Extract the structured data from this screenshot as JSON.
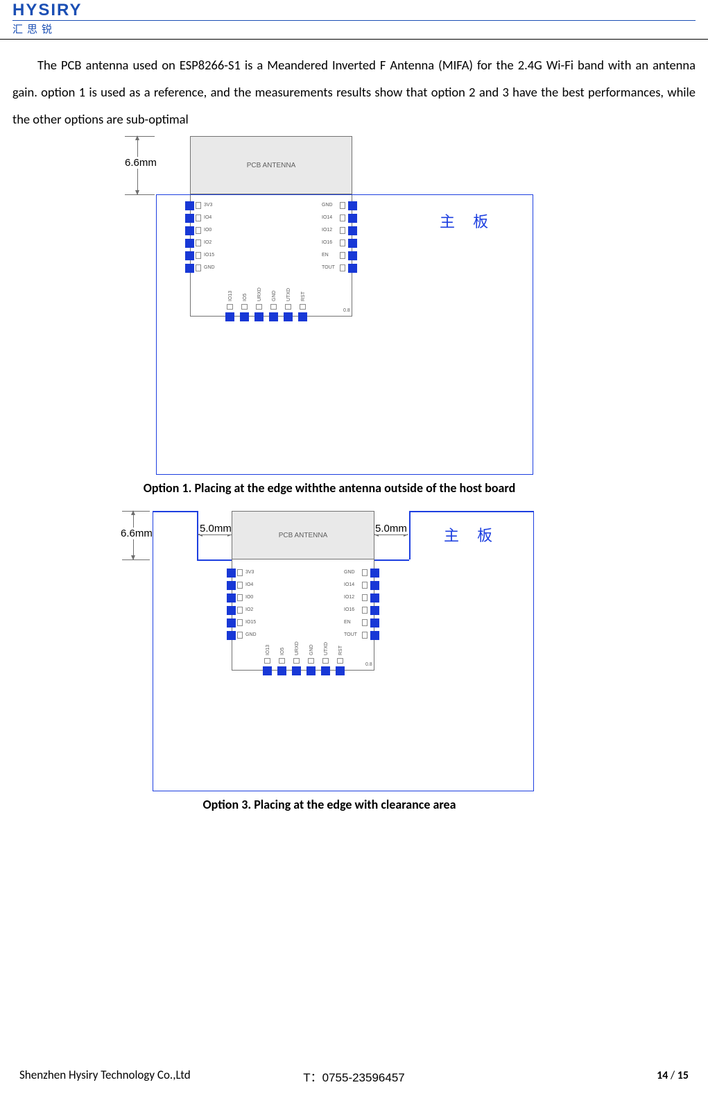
{
  "logo": {
    "top": "HYSIRY",
    "bottom": "汇思锐"
  },
  "paragraph": "The PCB antenna used on ESP8266-S1 is a Meandered Inverted F Antenna (MIFA) for the 2.4G Wi-Fi band with an antenna gain. option 1 is used as a reference, and the measurements results show that option 2 and 3 have the best performances, while the other options are sub-optimal",
  "fig_shared": {
    "pcb_antenna_label": "PCB ANTENNA",
    "host_label_cn": "主 板",
    "left_pins": [
      "3V3",
      "IO4",
      "IO0",
      "IO2",
      "IO15",
      "GND"
    ],
    "right_pins": [
      "GND",
      "IO14",
      "IO12",
      "IO16",
      "EN",
      "TOUT"
    ],
    "bottom_pins": [
      "IO13",
      "IO5",
      "URXD",
      "GND",
      "UTXD",
      "RST"
    ],
    "chamfer": "0.8",
    "colors": {
      "pad": "#1838d6",
      "host_border": "#1d3fe0",
      "module_border": "#737373",
      "ant_bg": "#e9e9e9",
      "dim": "#6f6f6f"
    }
  },
  "fig1": {
    "caption": "Option 1. Placing at the edge withthe antenna outside of the host board",
    "dim_v_label": "6.6mm"
  },
  "fig2": {
    "caption": "Option 3. Placing at the edge with clearance area",
    "dim_v_label": "6.6mm",
    "dim_h_label_left": "5.0mm",
    "dim_h_label_right": "5.0mm"
  },
  "footer": {
    "left": "Shenzhen Hysiry Technology Co.,Ltd",
    "center": "T：0755-23596457",
    "page_cur": "14",
    "page_sep": " / ",
    "page_tot": "15"
  }
}
